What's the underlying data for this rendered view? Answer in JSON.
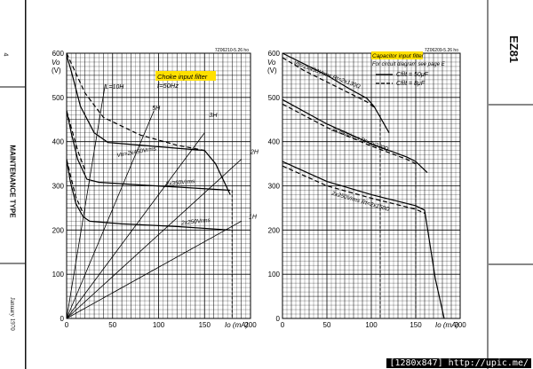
{
  "sheet": {
    "page_number": "4",
    "section": "MAINTENANCE TYPE",
    "date": "January 1970",
    "tube": "EZ81",
    "footer": "[1280x847] http://upic.me/"
  },
  "chart_data": [
    {
      "type": "line",
      "title": "Choke input filter",
      "subtitle": "f=50Hz",
      "ref": "7Z06210-5.26 ho",
      "ylabel": "Vo (V)",
      "xlabel": "Io (mA)",
      "xlim": [
        0,
        200
      ],
      "ylim": [
        0,
        600
      ],
      "x_ticks": [
        0,
        50,
        100,
        150,
        200
      ],
      "y_ticks": [
        0,
        100,
        200,
        300,
        400,
        500,
        600
      ],
      "grid": true,
      "series": [
        {
          "name": "2x450Vrms",
          "style": "solid",
          "x": [
            0,
            5,
            15,
            30,
            45,
            80,
            120,
            150,
            162,
            178
          ],
          "y": [
            595,
            560,
            480,
            420,
            398,
            392,
            385,
            380,
            350,
            280
          ]
        },
        {
          "name": "2x450Vrms",
          "style": "dashed",
          "x": [
            0,
            10,
            20,
            40,
            80,
            120,
            150
          ],
          "y": [
            600,
            555,
            510,
            455,
            415,
            392,
            380
          ]
        },
        {
          "name": "2x350Vrms",
          "style": "solid",
          "x": [
            0,
            5,
            12,
            22,
            35,
            80,
            130,
            178
          ],
          "y": [
            470,
            420,
            360,
            315,
            308,
            302,
            296,
            290
          ]
        },
        {
          "name": "2x350Vrms",
          "style": "dashed",
          "x": [
            0,
            5,
            12,
            20
          ],
          "y": [
            470,
            432,
            380,
            335
          ]
        },
        {
          "name": "2x250Vrms",
          "style": "solid",
          "x": [
            0,
            4,
            10,
            18,
            25,
            60,
            120,
            178
          ],
          "y": [
            360,
            310,
            260,
            230,
            220,
            214,
            208,
            200
          ]
        },
        {
          "name": "2x250Vrms",
          "style": "dashed",
          "x": [
            0,
            4,
            10,
            18
          ],
          "y": [
            360,
            325,
            275,
            238
          ]
        }
      ],
      "choke_lines": [
        {
          "name": "L=10H",
          "x_end": 42,
          "y_end": 530
        },
        {
          "name": "5H",
          "x_end": 95,
          "y_end": 470
        },
        {
          "name": "3H",
          "x_end": 150,
          "y_end": 420
        },
        {
          "name": "2H",
          "x_end": 190,
          "y_end": 360
        },
        {
          "name": "1H",
          "x_end": 190,
          "y_end": 220
        }
      ],
      "labels": {
        "choke_10h": "L=10H",
        "choke_5h": "5H",
        "choke_3h": "3H",
        "choke_2h": "2H",
        "choke_1h": "1H",
        "v450": "Vtr=2x450Vrms",
        "v350": "2x350Vrms",
        "v250": "2x250Vrms"
      }
    },
    {
      "type": "line",
      "title": "Capacitor input filter",
      "subtitle": "For circuit diagram see page E",
      "ref": "7Z06209-5.26 ho",
      "ylabel": "Vo (V)",
      "xlabel": "Io (mA)",
      "xlim": [
        0,
        200
      ],
      "ylim": [
        0,
        600
      ],
      "x_ticks": [
        0,
        50,
        100,
        150,
        200
      ],
      "y_ticks": [
        0,
        100,
        200,
        300,
        400,
        500,
        600
      ],
      "grid": true,
      "legend": [
        {
          "label": "Cfilt = 50μF",
          "style": "solid"
        },
        {
          "label": "Cfilt = 8μF",
          "style": "dashed"
        }
      ],
      "series": [
        {
          "name": "2x450Vrms, Rt=2x130Ω, 50μF",
          "style": "solid",
          "x": [
            0,
            25,
            50,
            75,
            95,
            103,
            120
          ],
          "y": [
            600,
            575,
            550,
            520,
            498,
            480,
            420
          ]
        },
        {
          "name": "2x450Vrms, Rt=2x130Ω, 8μF",
          "style": "dashed",
          "x": [
            0,
            25,
            50,
            75,
            95,
            103
          ],
          "y": [
            590,
            560,
            535,
            510,
            490,
            478
          ]
        },
        {
          "name": "2x350Vrms, Rt=2x230Ω, 50μF",
          "style": "solid",
          "x": [
            0,
            50,
            100,
            140,
            150,
            163
          ],
          "y": [
            495,
            440,
            395,
            365,
            355,
            330
          ]
        },
        {
          "name": "2x350Vrms, Rt=2x230Ω, 8μF",
          "style": "dashed",
          "x": [
            0,
            50,
            100,
            140,
            150
          ],
          "y": [
            485,
            432,
            390,
            360,
            350
          ]
        },
        {
          "name": "2x250Vrms, Rt=2x150Ω, 50μF",
          "style": "solid",
          "x": [
            0,
            50,
            100,
            150,
            160,
            172,
            182
          ],
          "y": [
            355,
            310,
            280,
            255,
            245,
            90,
            0
          ]
        },
        {
          "name": "2x250Vrms, Rt=2x150Ω, 8μF",
          "style": "dashed",
          "x": [
            0,
            50,
            100,
            150,
            160
          ],
          "y": [
            345,
            300,
            272,
            247,
            238
          ]
        }
      ],
      "labels": {
        "v450": "Vtr=2x450Vrms Rt=2x130Ω",
        "v350": "2x350Vrms Rt=2x230Ω",
        "v250": "2x250Vrms Rt=2x150Ω"
      }
    }
  ]
}
